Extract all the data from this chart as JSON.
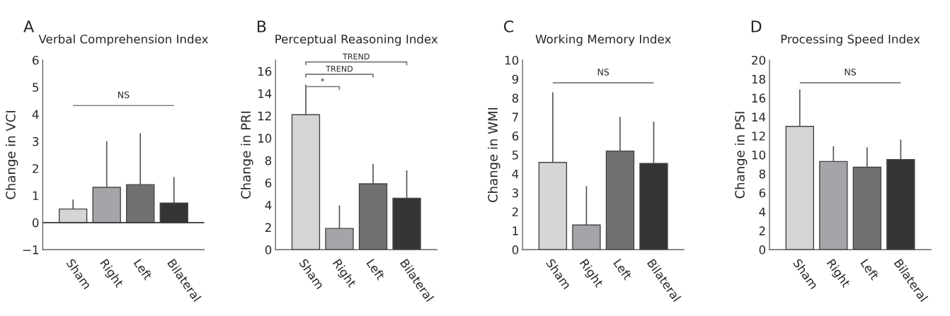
{
  "chart_data": [
    {
      "type": "bar",
      "title": "A",
      "subtitle": "Verbal Comprehension Index",
      "ylabel": "Change in VCI",
      "categories": [
        "Sham",
        "Right",
        "Left",
        "Bilateral"
      ],
      "values": [
        0.5,
        1.3,
        1.4,
        0.72
      ],
      "colors": [
        "#d4d5d7",
        "#a4a5a8",
        "#707173",
        "#333436"
      ],
      "errors": [
        [
          0.5,
          0.85
        ],
        [
          1.3,
          3.0
        ],
        [
          1.4,
          3.3
        ],
        [
          0.72,
          1.68
        ]
      ],
      "ylim": [
        -1,
        6
      ],
      "yticks": [
        {
          "value": -1,
          "label": "−1"
        },
        0,
        1,
        2,
        3,
        4,
        5,
        6
      ],
      "ref_lines": [
        {
          "axis": "y",
          "value": 0,
          "color": "#333333"
        }
      ],
      "annotations": [
        "NS"
      ],
      "grid": false,
      "legend": false
    },
    {
      "type": "bar",
      "title": "B",
      "subtitle": "Perceptual Reasoning Index",
      "ylabel": "Change in PRI",
      "categories": [
        "Sham",
        "Right",
        "Left",
        "Bilateral"
      ],
      "values": [
        12.1,
        1.9,
        5.9,
        4.6
      ],
      "colors": [
        "#d4d5d7",
        "#a4a5a8",
        "#707173",
        "#333436"
      ],
      "errors": [
        [
          12.1,
          14.8
        ],
        [
          1.9,
          3.95
        ],
        [
          5.9,
          7.7
        ],
        [
          4.6,
          7.1
        ]
      ],
      "ylim": [
        0,
        17
      ],
      "yticks": [
        0,
        2,
        4,
        6,
        8,
        10,
        12,
        14,
        16
      ],
      "annotations": [
        "*",
        "TREND",
        "TREND"
      ],
      "grid": false,
      "legend": false
    },
    {
      "type": "bar",
      "title": "C",
      "subtitle": "Working Memory Index",
      "ylabel": "Change in WMI",
      "categories": [
        "Sham",
        "Right",
        "Left",
        "Bilateral"
      ],
      "values": [
        4.6,
        1.3,
        5.2,
        4.55
      ],
      "colors": [
        "#d4d5d7",
        "#a4a5a8",
        "#707173",
        "#333436"
      ],
      "errors": [
        [
          4.6,
          8.3
        ],
        [
          1.3,
          3.35
        ],
        [
          5.2,
          7.0
        ],
        [
          4.55,
          6.75
        ]
      ],
      "ylim": [
        0,
        10
      ],
      "yticks": [
        0,
        1,
        2,
        3,
        4,
        5,
        6,
        7,
        8,
        9,
        10
      ],
      "annotations": [
        "NS"
      ],
      "grid": false,
      "legend": false
    },
    {
      "type": "bar",
      "title": "D",
      "subtitle": "Processing Speed Index",
      "ylabel": "Change in PSI",
      "categories": [
        "Sham",
        "Right",
        "Left",
        "Bilateral"
      ],
      "values": [
        13.0,
        9.3,
        8.7,
        9.5
      ],
      "colors": [
        "#d4d5d7",
        "#a4a5a8",
        "#707173",
        "#333436"
      ],
      "errors": [
        [
          13.0,
          16.9
        ],
        [
          9.3,
          10.9
        ],
        [
          8.7,
          10.8
        ],
        [
          9.5,
          11.6
        ]
      ],
      "ylim": [
        0,
        20
      ],
      "yticks": [
        0,
        2,
        4,
        6,
        8,
        10,
        12,
        14,
        16,
        18,
        20
      ],
      "annotations": [
        "NS"
      ],
      "grid": false,
      "legend": false
    }
  ]
}
